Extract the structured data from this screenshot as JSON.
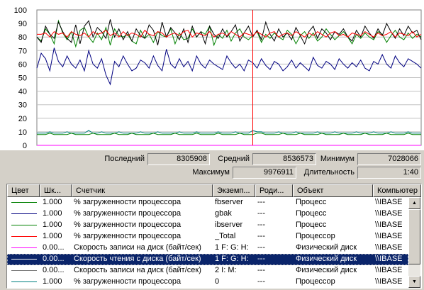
{
  "chart_data": {
    "type": "line",
    "title": "",
    "xlabel": "",
    "ylabel": "",
    "ylim": [
      0,
      100
    ],
    "yticks": [
      "100",
      "90",
      "80",
      "70",
      "60",
      "50",
      "40",
      "30",
      "20",
      "10",
      "0"
    ],
    "grid": true,
    "marker_sample": 50,
    "marker_color": "#ff0000",
    "series": [
      {
        "color": "#008000",
        "values": [
          80,
          77,
          86,
          82,
          75,
          92,
          83,
          78,
          84,
          73,
          85,
          87,
          80,
          76,
          83,
          78,
          87,
          74,
          86,
          81,
          80,
          82,
          77,
          75,
          85,
          79,
          82,
          76,
          84,
          81,
          80,
          86,
          75,
          83,
          78,
          79,
          86,
          80,
          84,
          82,
          88,
          74,
          82,
          79,
          85,
          77,
          83,
          86,
          80,
          78,
          81,
          84,
          76,
          82,
          79,
          83,
          80,
          78,
          85,
          82,
          75,
          81,
          84,
          79,
          83,
          77,
          80,
          86,
          82,
          78,
          81,
          84,
          80,
          75,
          82,
          79,
          83,
          80,
          78,
          84,
          82,
          76,
          81,
          85,
          80,
          78,
          83,
          79,
          82,
          80
        ]
      },
      {
        "color": "#000080",
        "values": [
          57,
          68,
          64,
          55,
          72,
          62,
          58,
          66,
          60,
          57,
          63,
          55,
          70,
          60,
          57,
          64,
          52,
          45,
          62,
          58,
          66,
          60,
          55,
          57,
          63,
          61,
          57,
          66,
          59,
          55,
          71,
          60,
          57,
          64,
          58,
          62,
          55,
          66,
          60,
          57,
          63,
          60,
          58,
          56,
          66,
          61,
          57,
          60,
          55,
          63,
          61,
          57,
          64,
          59,
          56,
          62,
          60,
          55,
          58,
          63,
          57,
          61,
          58,
          55,
          65,
          59,
          57,
          62,
          60,
          56,
          64,
          60,
          57,
          61,
          58,
          63,
          57,
          55,
          62,
          60,
          67,
          60,
          57,
          66,
          61,
          58,
          64,
          62,
          60,
          57
        ]
      },
      {
        "color": "#000000",
        "values": [
          80,
          76,
          88,
          82,
          79,
          91,
          84,
          79,
          76,
          89,
          75,
          88,
          92,
          80,
          87,
          84,
          79,
          93,
          80,
          86,
          78,
          84,
          77,
          86,
          81,
          79,
          89,
          85,
          74,
          91,
          80,
          87,
          83,
          78,
          86,
          76,
          88,
          80,
          84,
          75,
          88,
          82,
          79,
          86,
          80,
          84,
          89,
          77,
          83,
          88,
          80,
          85,
          78,
          91,
          82,
          77,
          86,
          80,
          83,
          78,
          87,
          81,
          75,
          84,
          88,
          79,
          86,
          83,
          78,
          84,
          82,
          86,
          80,
          77,
          85,
          80,
          88,
          83,
          79,
          86,
          81,
          90,
          84,
          79,
          86,
          81,
          88,
          83,
          85,
          78
        ]
      },
      {
        "color": "#ff0000",
        "values": [
          82,
          82,
          83,
          80,
          84,
          82,
          83,
          80,
          84,
          82,
          81,
          83,
          80,
          84,
          82,
          83,
          85,
          81,
          83,
          80,
          84,
          81,
          83,
          82,
          80,
          85,
          82,
          81,
          84,
          83,
          80,
          82,
          83,
          81,
          84,
          85,
          80,
          83,
          82,
          81,
          84,
          80,
          82,
          83,
          81,
          84,
          82,
          80,
          83,
          82,
          81,
          84,
          82,
          80,
          83,
          84,
          80,
          82,
          83,
          81,
          84,
          82,
          80,
          83,
          81,
          84,
          82,
          80,
          83,
          84,
          81,
          82,
          80,
          83,
          82,
          81,
          84,
          82,
          80,
          83,
          81,
          82,
          84,
          80,
          83,
          82,
          81,
          84,
          80,
          82
        ]
      },
      {
        "color": "#008080",
        "values": [
          9,
          9,
          9,
          10,
          9,
          9,
          9,
          10,
          9,
          9,
          9,
          9,
          11,
          9,
          9,
          10,
          9,
          9,
          9,
          10,
          9,
          9,
          9,
          9,
          10,
          9,
          9,
          9,
          10,
          9,
          9,
          9,
          9,
          10,
          9,
          9,
          9,
          10,
          9,
          9,
          9,
          9,
          10,
          9,
          9,
          9,
          10,
          9,
          9,
          9,
          11,
          10,
          10,
          9,
          9,
          9,
          10,
          9,
          9,
          9,
          10,
          9,
          9,
          9,
          9,
          10,
          9,
          9,
          9,
          10,
          9,
          9,
          9,
          9,
          10,
          9,
          9,
          9,
          10,
          9,
          9,
          9,
          10,
          9,
          9,
          9,
          10,
          9,
          9,
          9
        ]
      },
      {
        "color": "#008000",
        "values": [
          8,
          8,
          8,
          9,
          8,
          8,
          8,
          8,
          9,
          8,
          8,
          8,
          8,
          9,
          8,
          8,
          8,
          8,
          9,
          8,
          8,
          8,
          9,
          8,
          8,
          8,
          8,
          9,
          8,
          8,
          8,
          8,
          9,
          8,
          8,
          8,
          8,
          9,
          8,
          8,
          8,
          8,
          9,
          8,
          8,
          8,
          8,
          9,
          8,
          8,
          8,
          9,
          9,
          8,
          8,
          8,
          8,
          9,
          8,
          8,
          8,
          9,
          8,
          8,
          8,
          8,
          9,
          8,
          8,
          8,
          8,
          9,
          8,
          8,
          8,
          8,
          9,
          8,
          8,
          8,
          8,
          9,
          8,
          8,
          8,
          8,
          9,
          8,
          8,
          8
        ]
      },
      {
        "color": "#ff00ff",
        "values": [
          0,
          0,
          0,
          0,
          0,
          0,
          0,
          0,
          0,
          0,
          0,
          0,
          0,
          0,
          0,
          0,
          0,
          0,
          0,
          0,
          0,
          0,
          0,
          0,
          0,
          0,
          0,
          0,
          0,
          0,
          0,
          0,
          0,
          0,
          0,
          0,
          0,
          0,
          0,
          0,
          0,
          0,
          0,
          0,
          0,
          0,
          0,
          0,
          0,
          0,
          0,
          0,
          0,
          0,
          0,
          0,
          0,
          0,
          0,
          0,
          0,
          0,
          0,
          0,
          0,
          0,
          0,
          0,
          0,
          0,
          0,
          0,
          0,
          0,
          0,
          0,
          0,
          0,
          0,
          0,
          0,
          0,
          0,
          0,
          0,
          0,
          0,
          0,
          0,
          0
        ]
      }
    ]
  },
  "stats": {
    "last_label": "Последний",
    "last_value": "8305908",
    "avg_label": "Средний",
    "avg_value": "8536573",
    "min_label": "Минимум",
    "min_value": "7028066",
    "max_label": "Максимум",
    "max_value": "9976911",
    "duration_label": "Длительность",
    "duration_value": "1:40"
  },
  "table": {
    "headers": [
      "Цвет",
      "Шк...",
      "Счетчик",
      "Экземп...",
      "Роди...",
      "Объект",
      "Компьютер"
    ],
    "rows": [
      {
        "color": "#008000",
        "scale": "1.000",
        "counter": "% загруженности процессора",
        "instance": "fbserver",
        "parent": "---",
        "object": "Процесс",
        "computer": "\\\\IBASE",
        "selected": false
      },
      {
        "color": "#000080",
        "scale": "1.000",
        "counter": "% загруженности процессора",
        "instance": "gbak",
        "parent": "---",
        "object": "Процесс",
        "computer": "\\\\IBASE",
        "selected": false
      },
      {
        "color": "#008000",
        "scale": "1.000",
        "counter": "% загруженности процессора",
        "instance": "ibserver",
        "parent": "---",
        "object": "Процесс",
        "computer": "\\\\IBASE",
        "selected": false
      },
      {
        "color": "#ff0000",
        "scale": "1.000",
        "counter": "% загруженности процессора",
        "instance": "_Total",
        "parent": "---",
        "object": "Процессор",
        "computer": "\\\\IBASE",
        "selected": false
      },
      {
        "color": "#ff00ff",
        "scale": "0.00...",
        "counter": "Скорость записи на диск (байт/сек)",
        "instance": "1 F: G: H:",
        "parent": "---",
        "object": "Физический диск",
        "computer": "\\\\IBASE",
        "selected": false
      },
      {
        "color": "#ffffff",
        "scale": "0.00...",
        "counter": "Скорость чтения с диска (байт/сек)",
        "instance": "1 F: G: H:",
        "parent": "---",
        "object": "Физический диск",
        "computer": "\\\\IBASE",
        "selected": true
      },
      {
        "color": "#808080",
        "scale": "0.00...",
        "counter": "Скорость записи на диск (байт/сек)",
        "instance": "2 I: M:",
        "parent": "---",
        "object": "Физический диск",
        "computer": "\\\\IBASE",
        "selected": false
      },
      {
        "color": "#008080",
        "scale": "1.000",
        "counter": "% загруженности процессора",
        "instance": "0",
        "parent": "---",
        "object": "Процессор",
        "computer": "\\\\IBASE",
        "selected": false
      }
    ]
  },
  "icons": {
    "scroll_up": "▲",
    "scroll_down": "▼"
  }
}
